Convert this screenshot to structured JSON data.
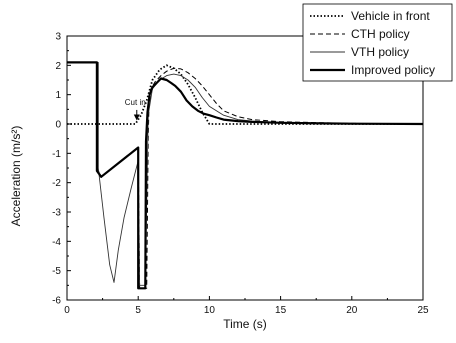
{
  "chart_data": {
    "type": "line",
    "title": "",
    "xlabel": "Time (s)",
    "ylabel": "Acceleration (m/s²)",
    "xlim": [
      0,
      25
    ],
    "ylim": [
      -6,
      3
    ],
    "xticks": [
      0,
      5,
      10,
      15,
      20,
      25
    ],
    "yticks": [
      -6,
      -5,
      -4,
      -3,
      -2,
      -1,
      0,
      1,
      2,
      3
    ],
    "grid": false,
    "legend_position": "top-right",
    "annotations": [
      {
        "text": "Cut in",
        "x": 4.9,
        "y": 0.65,
        "arrow_to_y": 0.12
      }
    ],
    "series": [
      {
        "name": "Vehicle in front",
        "style": "dotted",
        "color": "#000000",
        "x": [
          0,
          4.8,
          5.2,
          5.6,
          6.0,
          6.5,
          7.0,
          7.5,
          8.0,
          8.5,
          9.0,
          9.5,
          10.0,
          12,
          15,
          20,
          25
        ],
        "y": [
          0,
          0,
          0.3,
          0.8,
          1.5,
          1.85,
          2.0,
          1.9,
          1.7,
          1.35,
          0.9,
          0.4,
          0.0,
          0,
          0,
          0,
          0
        ]
      },
      {
        "name": "CTH policy",
        "style": "dashed",
        "color": "#000000",
        "x": [
          0,
          2.1,
          2.1,
          2.4,
          5.0,
          5.1,
          5.2,
          5.6,
          5.7,
          5.75,
          5.9,
          6.2,
          6.6,
          7.0,
          7.5,
          8.0,
          8.5,
          9.0,
          9.5,
          10.0,
          10.5,
          11.0,
          12.0,
          13.0,
          15.0,
          18.0,
          20.0,
          25.0
        ],
        "y": [
          2.1,
          2.1,
          -1.5,
          -1.8,
          -0.8,
          -5.6,
          -5.6,
          -5.6,
          -0.5,
          0.5,
          1.2,
          1.45,
          1.65,
          1.8,
          1.9,
          1.88,
          1.75,
          1.55,
          1.3,
          1.0,
          0.7,
          0.45,
          0.25,
          0.15,
          0.08,
          0.04,
          0.02,
          0.0
        ]
      },
      {
        "name": "VTH policy",
        "style": "solid",
        "color": "#333333",
        "x": [
          0,
          2.2,
          2.2,
          2.6,
          3.0,
          3.3,
          3.6,
          4.0,
          4.5,
          5.0,
          5.1,
          5.3,
          5.5,
          5.7,
          6.0,
          6.5,
          7.0,
          7.5,
          8.0,
          8.5,
          9.0,
          9.5,
          10.0,
          11.0,
          12.0,
          13.0,
          15.0,
          18.0,
          20.0,
          25.0
        ],
        "y": [
          2.1,
          2.1,
          -1.5,
          -3.2,
          -4.8,
          -5.4,
          -4.3,
          -3.2,
          -2.2,
          -1.25,
          -5.5,
          -5.5,
          -5.5,
          0.3,
          1.2,
          1.5,
          1.65,
          1.7,
          1.65,
          1.5,
          1.25,
          0.9,
          0.6,
          0.3,
          0.15,
          0.1,
          0.05,
          0.02,
          0.01,
          0.0
        ]
      },
      {
        "name": "Improved policy",
        "style": "solid-thick",
        "color": "#000000",
        "x": [
          0,
          2.1,
          2.1,
          2.4,
          5.0,
          5.0,
          5.5,
          5.55,
          5.65,
          5.8,
          6.0,
          6.3,
          6.6,
          7.0,
          7.3,
          7.6,
          8.0,
          8.4,
          8.8,
          9.2,
          9.6,
          10.0,
          10.5,
          11.0,
          12.0,
          13.0,
          15.0,
          18.0,
          20.0,
          25.0
        ],
        "y": [
          2.1,
          2.1,
          -1.6,
          -1.8,
          -0.8,
          -5.6,
          -5.6,
          -0.6,
          0.4,
          1.0,
          1.25,
          1.4,
          1.55,
          1.5,
          1.4,
          1.3,
          1.1,
          0.8,
          0.6,
          0.45,
          0.35,
          0.3,
          0.22,
          0.15,
          0.1,
          0.07,
          0.04,
          0.02,
          0.01,
          0.0
        ]
      }
    ]
  }
}
